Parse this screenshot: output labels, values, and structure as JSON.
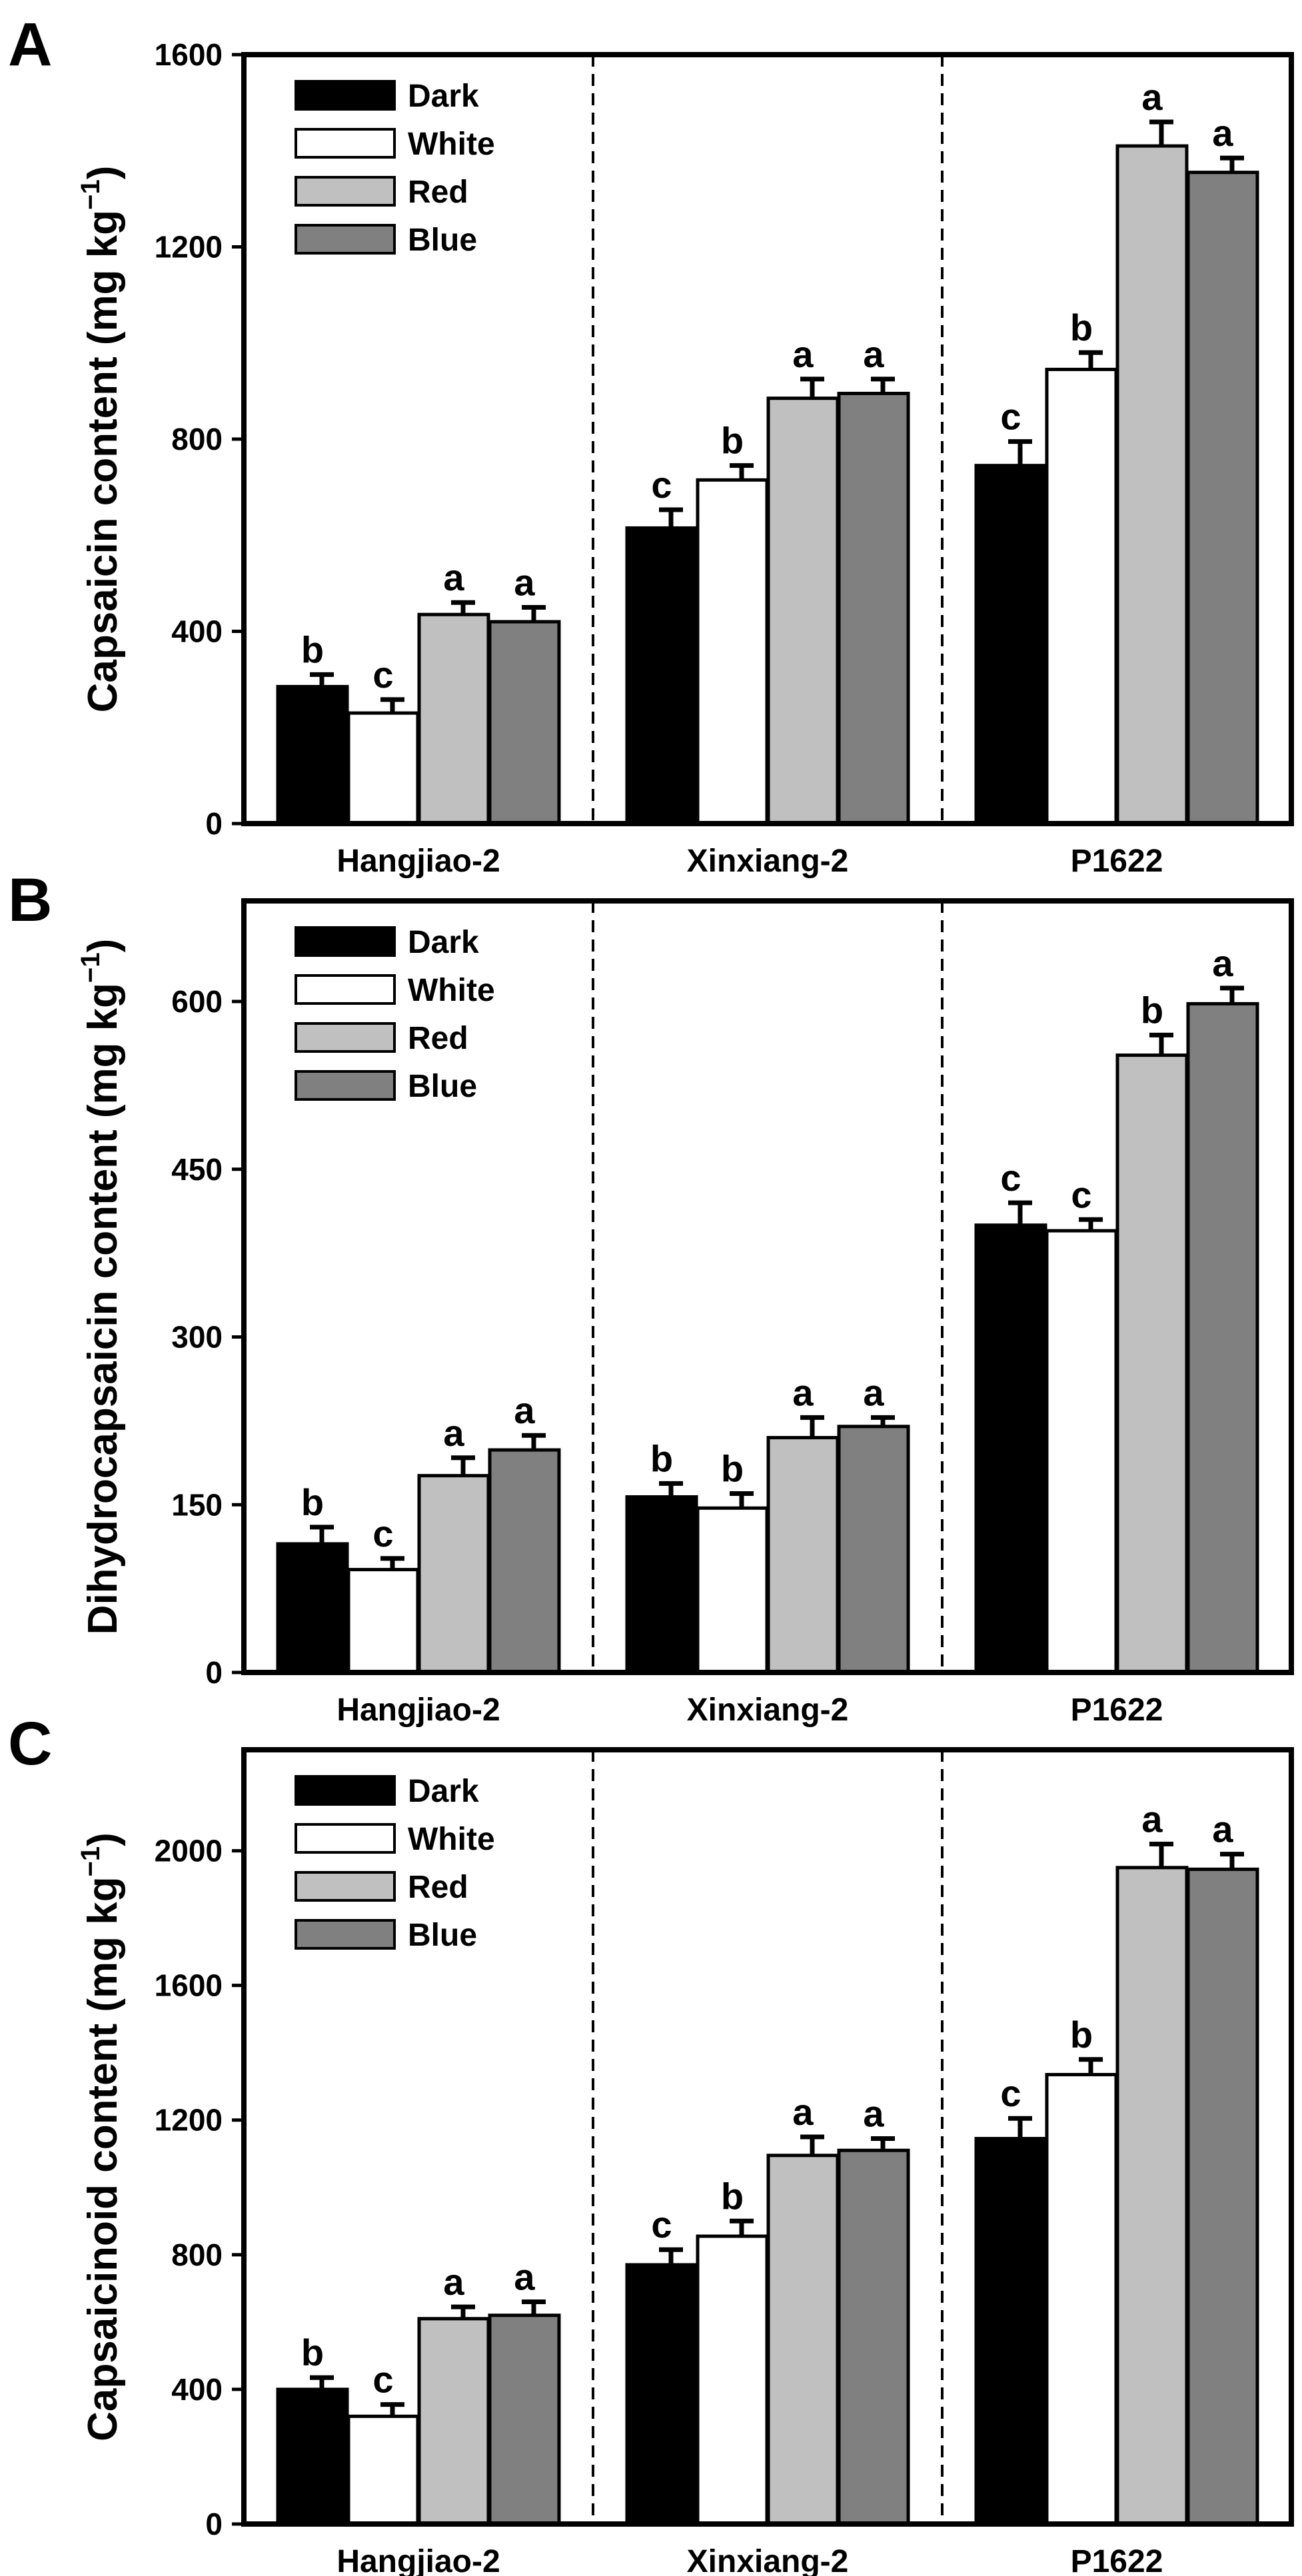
{
  "figure": {
    "legend_items": [
      {
        "label": "Dark",
        "color": "#000000"
      },
      {
        "label": "White",
        "color": "#ffffff"
      },
      {
        "label": "Red",
        "color": "#c0c0c0"
      },
      {
        "label": "Blue",
        "color": "#808080"
      }
    ]
  },
  "chart_data": [
    {
      "type": "bar",
      "panel_label": "A",
      "ylabel": "Capsaicin content (mg kg",
      "ylabel_superscript": "−1",
      "ylabel_close": ")",
      "xlabel": "",
      "categories": [
        "Hangjiao-2",
        "Xinxiang-2",
        "P1622"
      ],
      "ylim": [
        0,
        1600
      ],
      "yticks": [
        0,
        400,
        800,
        1200,
        1600
      ],
      "grid": false,
      "legend_position": "top-left",
      "series": [
        {
          "name": "Dark",
          "color": "#000000",
          "values": [
            285,
            615,
            745
          ],
          "errors": [
            25,
            38,
            50
          ],
          "letters": [
            "b",
            "c",
            "c"
          ]
        },
        {
          "name": "White",
          "color": "#ffffff",
          "values": [
            230,
            715,
            945
          ],
          "errors": [
            28,
            30,
            35
          ],
          "letters": [
            "c",
            "b",
            "b"
          ]
        },
        {
          "name": "Red",
          "color": "#c0c0c0",
          "values": [
            435,
            885,
            1410
          ],
          "errors": [
            25,
            40,
            50
          ],
          "letters": [
            "a",
            "a",
            "a"
          ]
        },
        {
          "name": "Blue",
          "color": "#808080",
          "values": [
            420,
            895,
            1355
          ],
          "errors": [
            30,
            30,
            30
          ],
          "letters": [
            "a",
            "a",
            "a"
          ]
        }
      ]
    },
    {
      "type": "bar",
      "panel_label": "B",
      "ylabel": "Dihydrocapsaicin content (mg kg",
      "ylabel_superscript": "−1",
      "ylabel_close": ")",
      "xlabel": "",
      "categories": [
        "Hangjiao-2",
        "Xinxiang-2",
        "P1622"
      ],
      "ylim": [
        0,
        690
      ],
      "yticks": [
        0,
        150,
        300,
        450,
        600
      ],
      "grid": false,
      "legend_position": "top-left",
      "series": [
        {
          "name": "Dark",
          "color": "#000000",
          "values": [
            115,
            157,
            400
          ],
          "errors": [
            15,
            12,
            20
          ],
          "letters": [
            "b",
            "b",
            "c"
          ]
        },
        {
          "name": "White",
          "color": "#ffffff",
          "values": [
            92,
            147,
            395
          ],
          "errors": [
            10,
            13,
            10
          ],
          "letters": [
            "c",
            "b",
            "c"
          ]
        },
        {
          "name": "Red",
          "color": "#c0c0c0",
          "values": [
            176,
            210,
            552
          ],
          "errors": [
            16,
            18,
            18
          ],
          "letters": [
            "a",
            "a",
            "b"
          ]
        },
        {
          "name": "Blue",
          "color": "#808080",
          "values": [
            199,
            220,
            598
          ],
          "errors": [
            13,
            8,
            14
          ],
          "letters": [
            "a",
            "a",
            "a"
          ]
        }
      ]
    },
    {
      "type": "bar",
      "panel_label": "C",
      "ylabel": "Capsaicinoid content (mg kg",
      "ylabel_superscript": "−1",
      "ylabel_close": ")",
      "xlabel": "",
      "categories": [
        "Hangjiao-2",
        "Xinxiang-2",
        "P1622"
      ],
      "ylim": [
        0,
        2300
      ],
      "yticks": [
        0,
        400,
        800,
        1200,
        1600,
        2000
      ],
      "grid": false,
      "legend_position": "top-left",
      "series": [
        {
          "name": "Dark",
          "color": "#000000",
          "values": [
            400,
            770,
            1145
          ],
          "errors": [
            35,
            45,
            60
          ],
          "letters": [
            "b",
            "c",
            "c"
          ]
        },
        {
          "name": "White",
          "color": "#ffffff",
          "values": [
            320,
            855,
            1335
          ],
          "errors": [
            35,
            45,
            45
          ],
          "letters": [
            "c",
            "b",
            "b"
          ]
        },
        {
          "name": "Red",
          "color": "#c0c0c0",
          "values": [
            610,
            1095,
            1950
          ],
          "errors": [
            35,
            55,
            70
          ],
          "letters": [
            "a",
            "a",
            "a"
          ]
        },
        {
          "name": "Blue",
          "color": "#808080",
          "values": [
            620,
            1110,
            1945
          ],
          "errors": [
            40,
            35,
            45
          ],
          "letters": [
            "a",
            "a",
            "a"
          ]
        }
      ]
    }
  ]
}
